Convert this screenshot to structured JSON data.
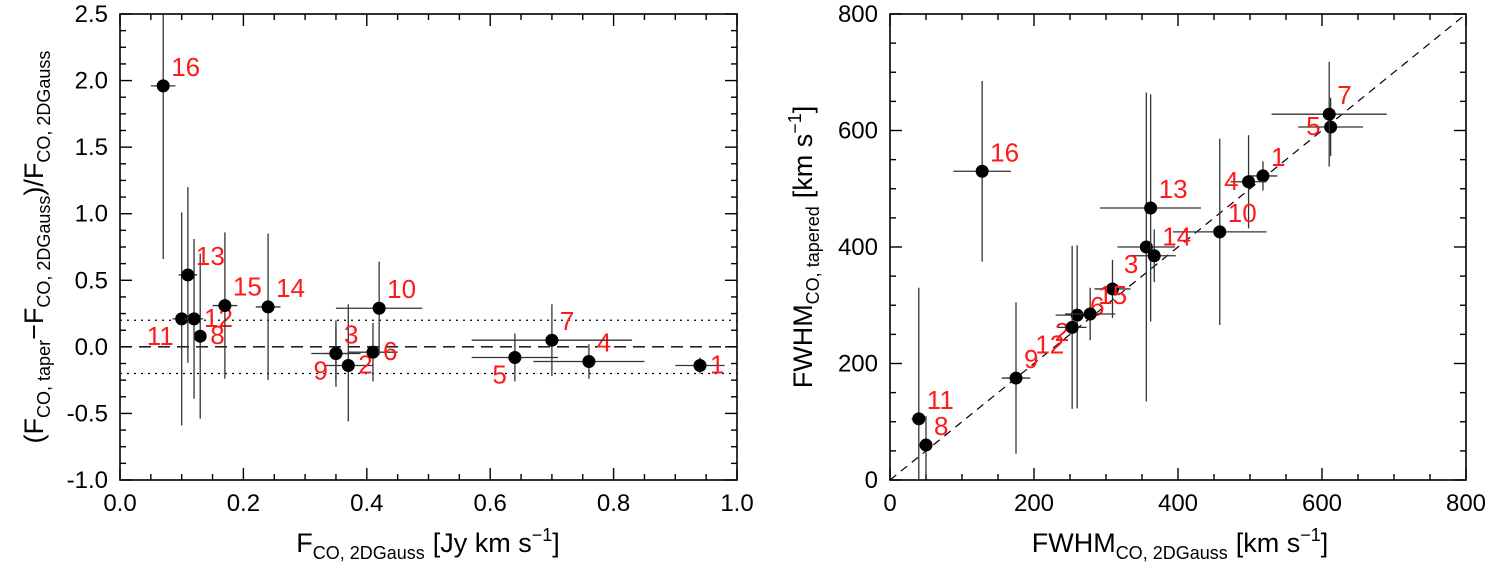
{
  "chart_data": [
    {
      "type": "scatter",
      "xlabel": {
        "base": "F",
        "sub": "CO, 2DGauss",
        "unit": "[Jy km s",
        "sup": "−1",
        "close": "]"
      },
      "ylabel": {
        "p1": "(F",
        "s1": "CO, taper",
        "p2": "−F",
        "s2": "CO, 2DGauss",
        "p3": ")/F",
        "s3": "CO, 2DGauss"
      },
      "xlim": [
        0.0,
        1.0
      ],
      "ylim": [
        -1.0,
        2.5
      ],
      "xticks": [
        0.0,
        0.2,
        0.4,
        0.6,
        0.8,
        1.0
      ],
      "xtick_labels": [
        "0.0",
        "0.2",
        "0.4",
        "0.6",
        "0.8",
        "1.0"
      ],
      "yticks": [
        -1.0,
        -0.5,
        0.0,
        0.5,
        1.0,
        1.5,
        2.0,
        2.5
      ],
      "ytick_labels": [
        "-1.0",
        "-0.5",
        "0.0",
        "0.5",
        "1.0",
        "1.5",
        "2.0",
        "2.5"
      ],
      "ref_lines": [
        {
          "y": 0.0,
          "style": "dashed"
        },
        {
          "y": 0.2,
          "style": "dotted"
        },
        {
          "y": -0.2,
          "style": "dotted"
        }
      ],
      "points": [
        {
          "label": "1",
          "x": 0.94,
          "y": -0.14,
          "xerr": 0.04,
          "yerr": [
            0.06,
            0.06
          ],
          "label_pos": "right"
        },
        {
          "label": "2",
          "x": 0.37,
          "y": -0.14,
          "xerr": 0.04,
          "yerr": [
            0.42,
            0.46
          ],
          "label_pos": "right"
        },
        {
          "label": "3",
          "x": 0.35,
          "y": -0.05,
          "xerr": 0.04,
          "yerr": [
            0.25,
            0.25
          ],
          "label_pos": "upper-right"
        },
        {
          "label": "4",
          "x": 0.76,
          "y": -0.11,
          "xerr": 0.09,
          "yerr": [
            0.13,
            0.13
          ],
          "label_pos": "upper-right"
        },
        {
          "label": "5",
          "x": 0.64,
          "y": -0.08,
          "xerr": 0.07,
          "yerr": [
            0.18,
            0.18
          ],
          "label_pos": "lower-left"
        },
        {
          "label": "6",
          "x": 0.41,
          "y": -0.04,
          "xerr": 0.04,
          "yerr": [
            0.22,
            0.22
          ],
          "label_pos": "right"
        },
        {
          "label": "7",
          "x": 0.7,
          "y": 0.05,
          "xerr": 0.13,
          "yerr": [
            0.27,
            0.27
          ],
          "label_pos": "upper-right"
        },
        {
          "label": "8",
          "x": 0.13,
          "y": 0.08,
          "xerr": 0.01,
          "yerr": [
            0.62,
            0.62
          ],
          "label_pos": "right"
        },
        {
          "label": "9",
          "x": 0.35,
          "y": -0.05,
          "xerr": 0.02,
          "yerr": [
            0.2,
            0.2
          ],
          "label_pos": "lower-left"
        },
        {
          "label": "10",
          "x": 0.42,
          "y": 0.29,
          "xerr": 0.07,
          "yerr": [
            0.35,
            0.35
          ],
          "label_pos": "upper-right"
        },
        {
          "label": "11",
          "x": 0.1,
          "y": 0.21,
          "xerr": 0.015,
          "yerr": [
            0.8,
            0.8
          ],
          "label_pos": "lower-left"
        },
        {
          "label": "12",
          "x": 0.12,
          "y": 0.21,
          "xerr": 0.015,
          "yerr": [
            0.6,
            0.6
          ],
          "label_pos": "right"
        },
        {
          "label": "13",
          "x": 0.11,
          "y": 0.54,
          "xerr": 0.015,
          "yerr": [
            0.66,
            0.66
          ],
          "label_pos": "upper-right"
        },
        {
          "label": "14",
          "x": 0.24,
          "y": 0.3,
          "xerr": 0.02,
          "yerr": [
            0.55,
            0.55
          ],
          "label_pos": "upper-right"
        },
        {
          "label": "15",
          "x": 0.17,
          "y": 0.31,
          "xerr": 0.02,
          "yerr": [
            0.55,
            0.55
          ],
          "label_pos": "upper-right"
        },
        {
          "label": "16",
          "x": 0.07,
          "y": 1.96,
          "xerr": 0.02,
          "yerr": [
            1.3,
            0.54
          ],
          "label_pos": "upper-right"
        }
      ]
    },
    {
      "type": "scatter",
      "xlabel": {
        "base": "FWHM",
        "sub": "CO, 2DGauss",
        "unit": "[km s",
        "sup": "−1",
        "close": "]"
      },
      "ylabel": {
        "base": "FWHM",
        "sub": "CO, tapered",
        "unit": "[km s",
        "sup": "−1",
        "close": "]"
      },
      "xlim": [
        0,
        800
      ],
      "ylim": [
        0,
        800
      ],
      "xticks": [
        0,
        200,
        400,
        600,
        800
      ],
      "xtick_labels": [
        "0",
        "200",
        "400",
        "600",
        "800"
      ],
      "yticks": [
        0,
        200,
        400,
        600,
        800
      ],
      "ytick_labels": [
        "0",
        "200",
        "400",
        "600",
        "800"
      ],
      "one_to_one_line": true,
      "points": [
        {
          "label": "1",
          "x": 518,
          "y": 522,
          "xerr": 20,
          "yerr": [
            25,
            25
          ],
          "label_pos": "upper-right"
        },
        {
          "label": "2",
          "x": 260,
          "y": 283,
          "xerr": 30,
          "yerr": [
            160,
            120
          ],
          "label_pos": "lower-left"
        },
        {
          "label": "3",
          "x": 356,
          "y": 400,
          "xerr": 40,
          "yerr": [
            265,
            265
          ],
          "label_pos": "lower-left"
        },
        {
          "label": "4",
          "x": 498,
          "y": 512,
          "xerr": 25,
          "yerr": [
            80,
            80
          ],
          "label_pos": "left"
        },
        {
          "label": "5",
          "x": 612,
          "y": 606,
          "xerr": 45,
          "yerr": [
            50,
            50
          ],
          "label_pos": "left"
        },
        {
          "label": "6",
          "x": 309,
          "y": 328,
          "xerr": 25,
          "yerr": [
            50,
            50
          ],
          "label_pos": "lower-left"
        },
        {
          "label": "7",
          "x": 610,
          "y": 628,
          "xerr": 80,
          "yerr": [
            90,
            90
          ],
          "label_pos": "upper-right"
        },
        {
          "label": "8",
          "x": 50,
          "y": 60,
          "xerr": 8,
          "yerr": [
            50,
            50
          ],
          "label_pos": "upper-right"
        },
        {
          "label": "9",
          "x": 175,
          "y": 175,
          "xerr": 20,
          "yerr": [
            130,
            130
          ],
          "label_pos": "upper-right"
        },
        {
          "label": "10",
          "x": 458,
          "y": 426,
          "xerr": 65,
          "yerr": [
            160,
            160
          ],
          "label_pos": "upper-right"
        },
        {
          "label": "11",
          "x": 40,
          "y": 105,
          "xerr": 10,
          "yerr": [
            225,
            225
          ],
          "label_pos": "upper-right"
        },
        {
          "label": "12",
          "x": 253,
          "y": 262,
          "xerr": 20,
          "yerr": [
            140,
            140
          ],
          "label_pos": "lower-left"
        },
        {
          "label": "13",
          "x": 362,
          "y": 467,
          "xerr": 70,
          "yerr": [
            195,
            195
          ],
          "label_pos": "upper-right"
        },
        {
          "label": "14",
          "x": 367,
          "y": 385,
          "xerr": 30,
          "yerr": [
            45,
            45
          ],
          "label_pos": "upper-right"
        },
        {
          "label": "15",
          "x": 278,
          "y": 285,
          "xerr": 35,
          "yerr": [
            45,
            45
          ],
          "label_pos": "upper-right"
        },
        {
          "label": "16",
          "x": 128,
          "y": 530,
          "xerr": 40,
          "yerr": [
            155,
            155
          ],
          "label_pos": "upper-right"
        }
      ]
    }
  ]
}
